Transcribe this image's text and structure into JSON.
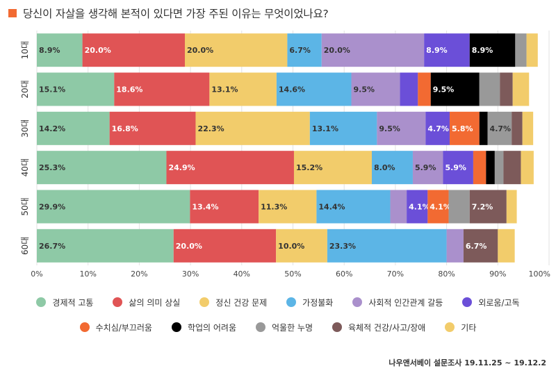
{
  "title": "당신이 자살을 생각해 본적이 있다면  가장 주된 이유는 무엇이었나요?",
  "accent_color": "#f26a32",
  "source": "나우앤서베이 설문조사 19.11.25 ~ 19.12.2",
  "chart_data": {
    "type": "bar",
    "orientation": "horizontal",
    "stacked": true,
    "percent": true,
    "title": "당신이 자살을 생각해 본적이 있다면  가장 주된 이유는 무엇이었나요?",
    "categories": [
      "10대",
      "20대",
      "30대",
      "40대",
      "50대",
      "60대"
    ],
    "xlim": [
      0,
      100
    ],
    "xticks": [
      "0%",
      "10%",
      "20%",
      "30%",
      "40%",
      "50%",
      "60%",
      "70%",
      "80%",
      "90%",
      "100%"
    ],
    "grid": true,
    "legend_position": "bottom",
    "series": [
      {
        "name": "경제적 고통",
        "color": "#8ec9a6",
        "values": [
          8.9,
          15.1,
          14.2,
          25.3,
          29.9,
          26.7
        ]
      },
      {
        "name": "삶의 의미 상실",
        "color": "#e05455",
        "values": [
          20.0,
          18.6,
          16.8,
          24.9,
          13.4,
          20.0
        ]
      },
      {
        "name": "정신 건강 문제",
        "color": "#f2cc6b",
        "values": [
          20.0,
          13.1,
          22.3,
          15.2,
          11.3,
          10.0
        ]
      },
      {
        "name": "가정불화",
        "color": "#5cb5e6",
        "values": [
          6.7,
          14.6,
          13.1,
          8.0,
          14.4,
          23.3
        ]
      },
      {
        "name": "사회적 인간관계 갈등",
        "color": "#aa90cc",
        "values": [
          20.0,
          9.5,
          9.5,
          5.9,
          3.2,
          3.3
        ]
      },
      {
        "name": "외로움/고독",
        "color": "#6b4fd8",
        "values": [
          8.9,
          3.5,
          4.7,
          5.9,
          4.1,
          0.0
        ]
      },
      {
        "name": "수치심/부끄러움",
        "color": "#f26a32",
        "values": [
          0.0,
          2.5,
          5.8,
          2.5,
          4.1,
          0.0
        ]
      },
      {
        "name": "학업의 어려움",
        "color": "#000000",
        "values": [
          8.9,
          9.5,
          1.6,
          1.7,
          0.0,
          0.0
        ]
      },
      {
        "name": "억울한 누명",
        "color": "#999999",
        "values": [
          2.2,
          4.0,
          4.7,
          1.7,
          4.1,
          0.0
        ]
      },
      {
        "name": "육체적 건강/사고/장애",
        "color": "#7d5a5a",
        "values": [
          0.0,
          2.5,
          2.1,
          3.4,
          7.2,
          6.7
        ]
      },
      {
        "name": "기타",
        "color": "#f2cc6b",
        "values": [
          2.2,
          3.2,
          2.1,
          2.5,
          2.0,
          3.3
        ]
      }
    ],
    "data_labels": [
      [
        "8.9%",
        "20.0%",
        "20.0%",
        "6.7%",
        "20.0%",
        "8.9%",
        "",
        "8.9%",
        "",
        "",
        ""
      ],
      [
        "15.1%",
        "18.6%",
        "13.1%",
        "14.6%",
        "9.5%",
        "",
        "",
        "9.5%",
        "",
        "",
        ""
      ],
      [
        "14.2%",
        "16.8%",
        "22.3%",
        "13.1%",
        "9.5%",
        "4.7%",
        "5.8%",
        "",
        "4.7%",
        "",
        ""
      ],
      [
        "25.3%",
        "24.9%",
        "15.2%",
        "8.0%",
        "5.9%",
        "5.9%",
        "",
        "",
        "",
        "",
        ""
      ],
      [
        "29.9%",
        "13.4%",
        "11.3%",
        "14.4%",
        "",
        "4.1%",
        "4.1%",
        "",
        "",
        "7.2%",
        ""
      ],
      [
        "26.7%",
        "20.0%",
        "10.0%",
        "23.3%",
        "",
        "",
        "",
        "",
        "",
        "6.7%",
        ""
      ]
    ]
  }
}
